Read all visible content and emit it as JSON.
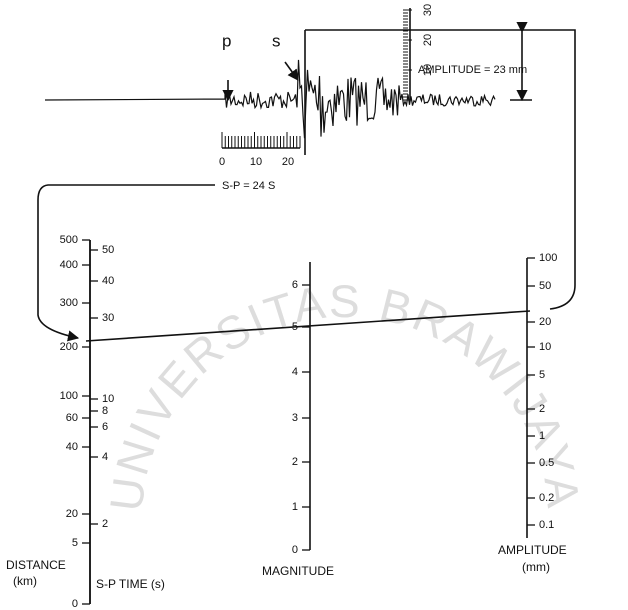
{
  "seismogram": {
    "p_label": "p",
    "s_label": "s",
    "sp_ticks": [
      "0",
      "10",
      "20"
    ],
    "amp_ticks": [
      "10",
      "20",
      "30"
    ],
    "amplitude_label": "AMPLITUDE = 23 mm",
    "sp_label": "S-P = 24 S"
  },
  "distance_scale": {
    "title": "DISTANCE",
    "unit": "(km)",
    "ticks": [
      "500",
      "400",
      "300",
      "200",
      "100",
      "60",
      "40",
      "20",
      "5",
      "0"
    ]
  },
  "sp_time_scale": {
    "title": "S-P TIME (s)",
    "ticks": [
      "50",
      "40",
      "30",
      "10",
      "8",
      "6",
      "4",
      "2"
    ]
  },
  "magnitude_scale": {
    "title": "MAGNITUDE",
    "ticks": [
      "6",
      "5",
      "4",
      "3",
      "2",
      "1",
      "0"
    ]
  },
  "amplitude_scale": {
    "title": "AMPLITUDE",
    "unit": "(mm)",
    "ticks": [
      "100",
      "50",
      "20",
      "10",
      "5",
      "2",
      "1",
      "0.5",
      "0.2",
      "0.1"
    ]
  },
  "watermark": "UNIVERSITAS BRAWIJAYA"
}
